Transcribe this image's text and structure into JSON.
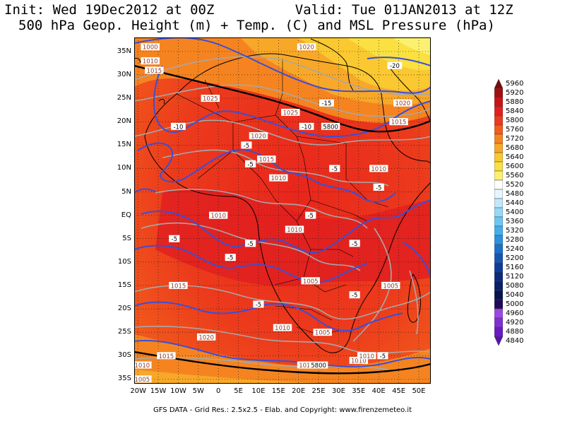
{
  "title": {
    "line1": "Init: Wed 19Dec2012 at 00Z          Valid: Tue 01JAN2013 at 12Z",
    "line2": "500 hPa Geop. Height (m) + Temp. (C) and MSL Pressure (hPa)"
  },
  "map": {
    "lat_labels": [
      "35N",
      "30N",
      "25N",
      "20N",
      "15N",
      "10N",
      "5N",
      "EQ",
      "5S",
      "10S",
      "15S",
      "20S",
      "25S",
      "30S",
      "35S"
    ],
    "lon_labels": [
      "20W",
      "15W",
      "10W",
      "5W",
      "0",
      "5E",
      "10E",
      "15E",
      "20E",
      "25E",
      "30E",
      "35E",
      "40E",
      "45E",
      "50E"
    ],
    "lat_range": [
      -36,
      38
    ],
    "lon_range": [
      -21,
      53
    ],
    "contour_labels": [
      {
        "text": "1025",
        "lon": -2,
        "lat": 25,
        "kind": "msl"
      },
      {
        "text": "1025",
        "lon": 18,
        "lat": 22,
        "kind": "msl"
      },
      {
        "text": "1020",
        "lon": 10,
        "lat": 17,
        "kind": "msl"
      },
      {
        "text": "1015",
        "lon": 12,
        "lat": 12,
        "kind": "msl"
      },
      {
        "text": "1010",
        "lon": 15,
        "lat": 8,
        "kind": "msl"
      },
      {
        "text": "1010",
        "lon": 0,
        "lat": 0,
        "kind": "msl"
      },
      {
        "text": "1010",
        "lon": 19,
        "lat": -3,
        "kind": "msl"
      },
      {
        "text": "1015",
        "lon": -10,
        "lat": -15,
        "kind": "msl"
      },
      {
        "text": "1005",
        "lon": 23,
        "lat": -14,
        "kind": "msl"
      },
      {
        "text": "1010",
        "lon": 16,
        "lat": -24,
        "kind": "msl"
      },
      {
        "text": "1005",
        "lon": 26,
        "lat": -25,
        "kind": "msl"
      },
      {
        "text": "1020",
        "lon": -3,
        "lat": -26,
        "kind": "msl"
      },
      {
        "text": "1015",
        "lon": -13,
        "lat": -30,
        "kind": "msl"
      },
      {
        "text": "1010",
        "lon": -19,
        "lat": -32,
        "kind": "msl"
      },
      {
        "text": "1005",
        "lon": -19,
        "lat": -35,
        "kind": "msl"
      },
      {
        "text": "1015",
        "lon": 22,
        "lat": -32,
        "kind": "msl"
      },
      {
        "text": "1010",
        "lon": 35,
        "lat": -31,
        "kind": "msl"
      },
      {
        "text": "1010",
        "lon": 37,
        "lat": -30,
        "kind": "msl"
      },
      {
        "text": "1005",
        "lon": 43,
        "lat": -15,
        "kind": "msl"
      },
      {
        "text": "1010",
        "lon": 40,
        "lat": 10,
        "kind": "msl"
      },
      {
        "text": "1015",
        "lon": 45,
        "lat": 20,
        "kind": "msl"
      },
      {
        "text": "1020",
        "lon": 46,
        "lat": 24,
        "kind": "msl"
      },
      {
        "text": "1020",
        "lon": 22,
        "lat": 36,
        "kind": "msl"
      },
      {
        "text": "1015",
        "lon": -16,
        "lat": 31,
        "kind": "msl"
      },
      {
        "text": "1010",
        "lon": -17,
        "lat": 33,
        "kind": "msl"
      },
      {
        "text": "1000",
        "lon": -17,
        "lat": 36,
        "kind": "msl"
      },
      {
        "text": "-20",
        "lon": 44,
        "lat": 32,
        "kind": "temp"
      },
      {
        "text": "-15",
        "lon": 27,
        "lat": 24,
        "kind": "temp"
      },
      {
        "text": "-10",
        "lon": -10,
        "lat": 19,
        "kind": "temp"
      },
      {
        "text": "-10",
        "lon": 22,
        "lat": 19,
        "kind": "temp"
      },
      {
        "text": "-5",
        "lon": 7,
        "lat": 15,
        "kind": "temp"
      },
      {
        "text": "-5",
        "lon": 8,
        "lat": 11,
        "kind": "temp"
      },
      {
        "text": "-5",
        "lon": 29,
        "lat": 10,
        "kind": "temp"
      },
      {
        "text": "-5",
        "lon": 40,
        "lat": 6,
        "kind": "temp"
      },
      {
        "text": "-5",
        "lon": 23,
        "lat": 0,
        "kind": "temp"
      },
      {
        "text": "-5",
        "lon": -11,
        "lat": -5,
        "kind": "temp"
      },
      {
        "text": "-5",
        "lon": 8,
        "lat": -6,
        "kind": "temp"
      },
      {
        "text": "-5",
        "lon": 3,
        "lat": -9,
        "kind": "temp"
      },
      {
        "text": "-5",
        "lon": 34,
        "lat": -6,
        "kind": "temp"
      },
      {
        "text": "-5",
        "lon": 34,
        "lat": -17,
        "kind": "temp"
      },
      {
        "text": "-5",
        "lon": 10,
        "lat": -19,
        "kind": "temp"
      },
      {
        "text": "-5",
        "lon": 41,
        "lat": -30,
        "kind": "temp"
      },
      {
        "text": "5800",
        "lon": 28,
        "lat": 19,
        "kind": "height"
      },
      {
        "text": "5800",
        "lon": 25,
        "lat": -32,
        "kind": "height"
      }
    ]
  },
  "colorbar": {
    "labels": [
      "5960",
      "5920",
      "5880",
      "5840",
      "5800",
      "5760",
      "5720",
      "5680",
      "5640",
      "5600",
      "5560",
      "5520",
      "5480",
      "5440",
      "5400",
      "5360",
      "5320",
      "5280",
      "5240",
      "5200",
      "5160",
      "5120",
      "5080",
      "5040",
      "5000",
      "4960",
      "4920",
      "4880",
      "4840"
    ],
    "colors": [
      "#7a0a0a",
      "#a01010",
      "#c81414",
      "#e02020",
      "#ec3a1c",
      "#f25c1c",
      "#f58420",
      "#f8a828",
      "#fac830",
      "#fae040",
      "#fcf070",
      "#ffffff",
      "#e6f6ff",
      "#c0e8fc",
      "#96d8f8",
      "#6cc6f4",
      "#44aeec",
      "#2a92de",
      "#1c72c8",
      "#1457b0",
      "#0e3c96",
      "#0a2a7c",
      "#082068",
      "#06154e",
      "#220a5a",
      "#9a48e0",
      "#8030d0",
      "#6a1cc0",
      "#5a10b0"
    ]
  },
  "footer": "GFS DATA - Grid Res.: 2.5x2.5 - Elab. and Copyright: www.firenzemeteo.it"
}
